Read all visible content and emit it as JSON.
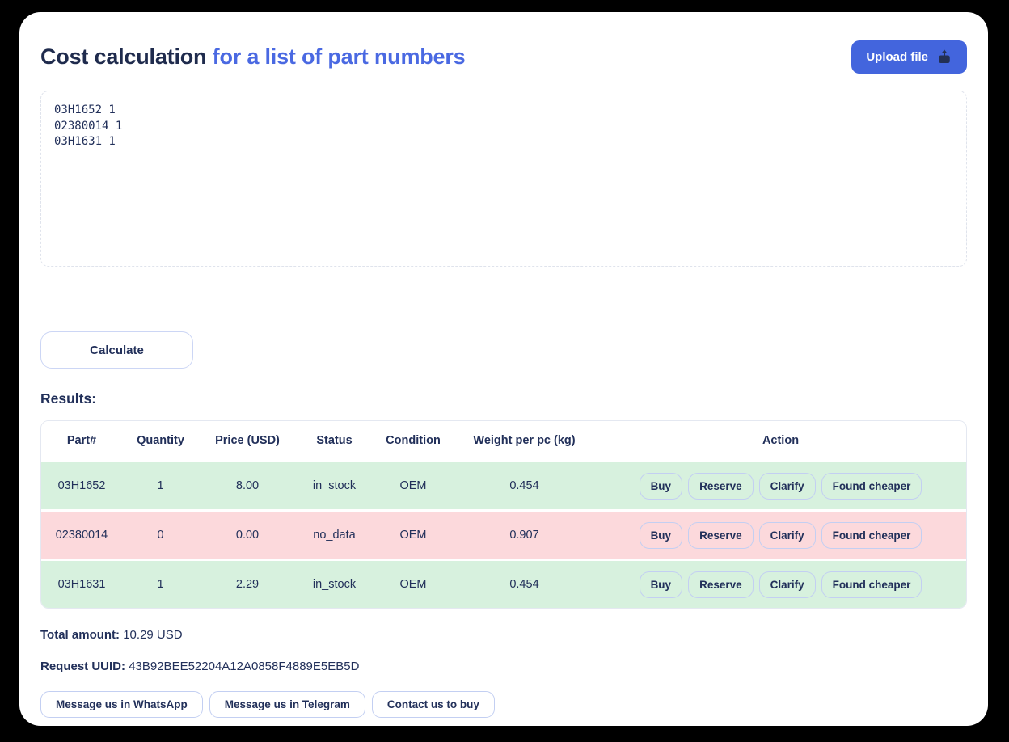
{
  "page": {
    "title_primary": "Cost calculation",
    "title_accent": "for a list of part numbers"
  },
  "header": {
    "upload_button_label": "Upload file"
  },
  "input": {
    "parts_text": "03H1652 1\n02380014 1\n03H1631 1"
  },
  "actions": {
    "calculate_label": "Calculate"
  },
  "results": {
    "heading": "Results:",
    "table": {
      "columns": [
        "Part#",
        "Quantity",
        "Price (USD)",
        "Status",
        "Condition",
        "Weight per pc (kg)",
        "Action"
      ],
      "rows": [
        {
          "part": "03H1652",
          "quantity": "1",
          "price": "8.00",
          "status": "in_stock",
          "condition": "OEM",
          "weight": "0.454"
        },
        {
          "part": "02380014",
          "quantity": "0",
          "price": "0.00",
          "status": "no_data",
          "condition": "OEM",
          "weight": "0.907"
        },
        {
          "part": "03H1631",
          "quantity": "1",
          "price": "2.29",
          "status": "in_stock",
          "condition": "OEM",
          "weight": "0.454"
        }
      ],
      "row_actions": [
        "Buy",
        "Reserve",
        "Clarify",
        "Found cheaper"
      ]
    },
    "total_label": "Total amount:",
    "total_value": "10.29 USD",
    "uuid_label": "Request UUID:",
    "uuid_value": "43B92BEE52204A12A0858F4889E5EB5D"
  },
  "contact": {
    "whatsapp_label": "Message us in WhatsApp",
    "telegram_label": "Message us in Telegram",
    "buy_label": "Contact us to buy"
  },
  "icons": {
    "upload": "upload-icon"
  },
  "colors": {
    "accent_blue": "#4a69e2",
    "upload_button_bg": "#4365dd",
    "dark_navy": "#22305a",
    "row_green": "#d7f1de",
    "row_pink": "#fcd9dc",
    "border_periwinkle": "#c3cff2",
    "page_background": "#000000"
  }
}
